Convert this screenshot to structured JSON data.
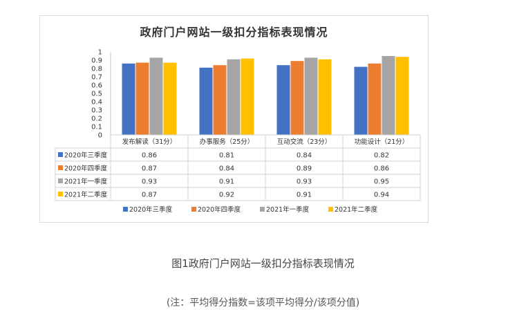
{
  "figure": {
    "caption": "图1政府门户网站一级扣分指标表现情况",
    "note": "(注：平均得分指数=该项平均得分/该项分值)"
  },
  "colors": {
    "2020年三季度": "#4472c4",
    "2020年四季度": "#ed7d31",
    "2021年一季度": "#a5a5a5",
    "2021年二季度": "#ffc000"
  },
  "chart_data": {
    "type": "bar",
    "title": "政府门户网站一级扣分指标表现情况",
    "categories": [
      "发布解读（31分）",
      "办事服务（25分）",
      "互动交流（23分）",
      "功能设计（21分）"
    ],
    "series": [
      {
        "name": "2020年三季度",
        "values": [
          0.86,
          0.81,
          0.84,
          0.82
        ]
      },
      {
        "name": "2020年四季度",
        "values": [
          0.87,
          0.84,
          0.89,
          0.86
        ]
      },
      {
        "name": "2021年一季度",
        "values": [
          0.93,
          0.91,
          0.93,
          0.95
        ]
      },
      {
        "name": "2021年二季度",
        "values": [
          0.87,
          0.92,
          0.91,
          0.94
        ]
      }
    ],
    "ylim": [
      0,
      1
    ],
    "yticks": [
      "0",
      "0.1",
      "0.2",
      "0.3",
      "0.4",
      "0.5",
      "0.6",
      "0.7",
      "0.8",
      "0.9",
      "1"
    ],
    "xlabel": "",
    "ylabel": "",
    "data_table": true,
    "legend_position": "bottom"
  }
}
